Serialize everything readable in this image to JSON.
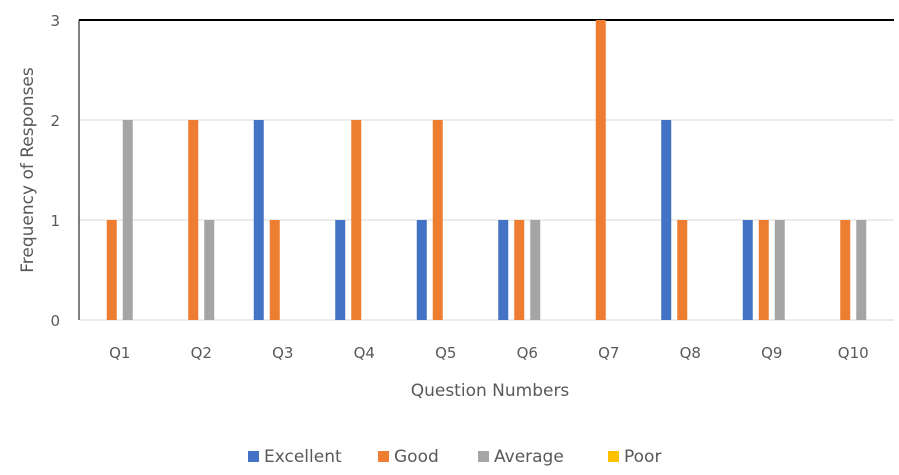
{
  "chart_data": {
    "type": "bar",
    "title": "",
    "xlabel": "Question Numbers",
    "ylabel": "Frequency of Responses",
    "ylim": [
      0,
      3
    ],
    "yticks": [
      0,
      1,
      2,
      3
    ],
    "grid": true,
    "legend_position": "bottom",
    "categories": [
      "Q1",
      "Q2",
      "Q3",
      "Q4",
      "Q5",
      "Q6",
      "Q7",
      "Q8",
      "Q9",
      "Q10"
    ],
    "series": [
      {
        "name": "Excellent",
        "color": "#4472C4",
        "values": [
          0,
          0,
          2,
          1,
          1,
          1,
          0,
          2,
          1,
          0
        ]
      },
      {
        "name": "Good",
        "color": "#ED7D31",
        "values": [
          1,
          2,
          1,
          2,
          2,
          1,
          3,
          1,
          1,
          1
        ]
      },
      {
        "name": "Average",
        "color": "#A5A5A5",
        "values": [
          2,
          1,
          0,
          0,
          0,
          1,
          0,
          0,
          1,
          1
        ]
      },
      {
        "name": "Poor",
        "color": "#FFC000",
        "values": [
          0,
          0,
          0,
          0,
          0,
          0,
          0,
          0,
          0,
          0
        ]
      }
    ]
  }
}
